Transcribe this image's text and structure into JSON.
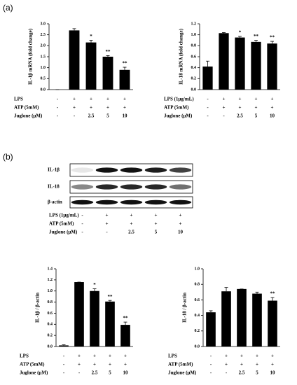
{
  "panel_labels": [
    "(a)",
    "(b)"
  ],
  "chart_data": [
    {
      "type": "bar",
      "ylabel": "IL-1β mRNA (fold change)",
      "color": "#000000",
      "ylim": [
        0,
        3.0
      ],
      "yticks": [
        {
          "value": 0,
          "label": "0.0"
        },
        {
          "value": 0.5,
          "label": "0.5"
        },
        {
          "value": 1,
          "label": "1.0"
        },
        {
          "value": 1.5,
          "label": "1.5"
        },
        {
          "value": 2,
          "label": "2.0"
        },
        {
          "value": 2.5,
          "label": "2.5"
        },
        {
          "value": 3,
          "label": "3.0"
        }
      ],
      "values": [
        0,
        2.7,
        2.15,
        1.5,
        0.9
      ],
      "errors": [
        0,
        0.08,
        0.1,
        0.05,
        0.12
      ],
      "annotations": [
        null,
        null,
        "*",
        "**",
        "**"
      ],
      "conditions": [
        {
          "name": "LPS",
          "values": [
            "-",
            "+",
            "+",
            "+",
            "+"
          ]
        },
        {
          "name": "ATP (5mM)",
          "values": [
            "-",
            "+",
            "+",
            "+",
            "+"
          ]
        },
        {
          "name": "Juglone (μM)",
          "values": [
            "-",
            "-",
            "2.5",
            "5",
            "10"
          ]
        }
      ]
    },
    {
      "type": "bar",
      "ylabel": "IL-18 mRNA (fold change)",
      "color": "#000000",
      "ylim": [
        0,
        1.2
      ],
      "yticks": [
        {
          "value": 0,
          "label": "0.0"
        },
        {
          "value": 0.2,
          "label": "0.2"
        },
        {
          "value": 0.4,
          "label": "0.4"
        },
        {
          "value": 0.6,
          "label": "0.6"
        },
        {
          "value": 0.8,
          "label": "0.8"
        },
        {
          "value": 1,
          "label": "1.0"
        },
        {
          "value": 1.2,
          "label": "1.2"
        }
      ],
      "values": [
        0.42,
        1.03,
        0.95,
        0.87,
        0.84
      ],
      "errors": [
        0.1,
        0.01,
        0.02,
        0.03,
        0.04
      ],
      "annotations": [
        null,
        null,
        "*",
        "**",
        "**"
      ],
      "conditions": [
        {
          "name": "LPS (1μg/mL)",
          "values": [
            "-",
            "+",
            "+",
            "+",
            "+"
          ]
        },
        {
          "name": "ATP (5mM)",
          "values": [
            "-",
            "+",
            "+",
            "+",
            "+"
          ]
        },
        {
          "name": "Juglone (μM)",
          "values": [
            "-",
            "-",
            "2.5",
            "5",
            "10"
          ]
        }
      ]
    },
    {
      "type": "bar",
      "ylabel": "IL-1β / β-actin",
      "color": "#000000",
      "ylim": [
        0,
        1.4
      ],
      "yticks": [
        {
          "value": 0,
          "label": "0.0"
        },
        {
          "value": 0.2,
          "label": "0.2"
        },
        {
          "value": 0.4,
          "label": "0.4"
        },
        {
          "value": 0.6,
          "label": "0.6"
        },
        {
          "value": 0.8,
          "label": "0.8"
        },
        {
          "value": 1,
          "label": "1.0"
        },
        {
          "value": 1.2,
          "label": "1.2"
        },
        {
          "value": 1.4,
          "label": "1.4"
        }
      ],
      "values": [
        0.02,
        1.16,
        1.0,
        0.81,
        0.39
      ],
      "errors": [
        0.01,
        0,
        0.04,
        0.02,
        0.05
      ],
      "annotations": [
        null,
        null,
        "*",
        "**",
        "**"
      ],
      "conditions": [
        {
          "name": "LPS",
          "values": [
            "-",
            "+",
            "+",
            "+",
            "+"
          ]
        },
        {
          "name": "ATP (5mM)",
          "values": [
            "-",
            "+",
            "+",
            "+",
            "+"
          ]
        },
        {
          "name": "Juglone (μM)",
          "values": [
            "-",
            "-",
            "2.5",
            "5",
            "10"
          ]
        }
      ]
    },
    {
      "type": "bar",
      "ylabel": "IL-18 / β-actin",
      "color": "#000000",
      "ylim": [
        0,
        1.0
      ],
      "yticks": [
        {
          "value": 0,
          "label": "0.0"
        },
        {
          "value": 0.2,
          "label": "0.2"
        },
        {
          "value": 0.4,
          "label": "0.4"
        },
        {
          "value": 0.6,
          "label": "0.6"
        },
        {
          "value": 0.8,
          "label": "0.8"
        },
        {
          "value": 1,
          "label": "1.0"
        }
      ],
      "values": [
        0.44,
        0.71,
        0.74,
        0.68,
        0.59
      ],
      "errors": [
        0.02,
        0.05,
        0,
        0.02,
        0.04
      ],
      "annotations": [
        null,
        null,
        null,
        null,
        "**"
      ],
      "conditions": [
        {
          "name": "LPS",
          "values": [
            "-",
            "+",
            "+",
            "+",
            "+"
          ]
        },
        {
          "name": "ATP (5mM)",
          "values": [
            "-",
            "+",
            "+",
            "+",
            "+"
          ]
        },
        {
          "name": "Juglone (μM)",
          "values": [
            "-",
            "-",
            "2.5",
            "5",
            "10"
          ]
        }
      ]
    }
  ],
  "blot": {
    "bands": [
      "IL-1β",
      "IL-18",
      "β-actin"
    ],
    "conditions": [
      {
        "name": "LPS (1μg/mL)",
        "values": [
          "-",
          "+",
          "+",
          "+",
          "+"
        ]
      },
      {
        "name": "ATP (5mM)",
        "values": [
          "-",
          "+",
          "+",
          "+",
          "+"
        ]
      },
      {
        "name": "Juglone (μM)",
        "values": [
          "-",
          "-",
          "2.5",
          "5",
          "10"
        ]
      }
    ]
  }
}
